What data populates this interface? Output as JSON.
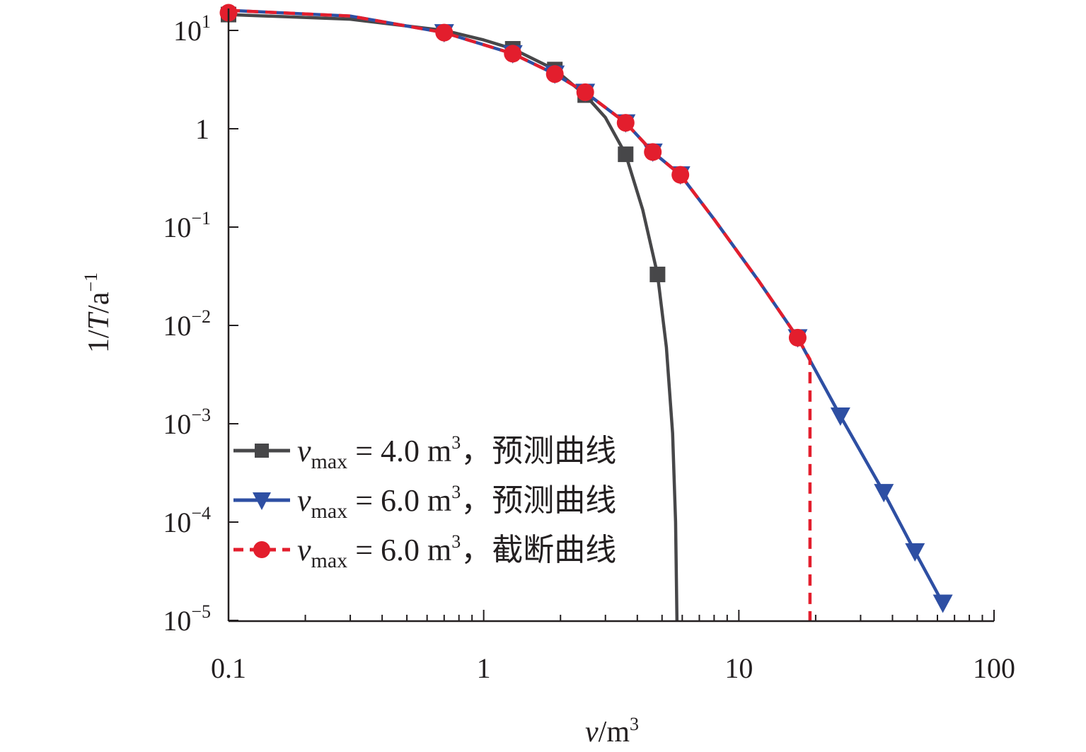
{
  "chart_data": {
    "type": "line",
    "xlabel": {
      "var": "v",
      "sep": "/m",
      "sup": "3"
    },
    "ylabel": {
      "pre": "1/",
      "var": "T",
      "post": "/a",
      "sup": "−1"
    },
    "xscale": "log",
    "yscale": "log",
    "xlim": [
      0.1,
      100
    ],
    "ylim": [
      1e-05,
      20
    ],
    "x_ticks": [
      {
        "value": 0.1,
        "label": "0.1"
      },
      {
        "value": 1,
        "label": "1"
      },
      {
        "value": 10,
        "label": "10"
      },
      {
        "value": 100,
        "label": "100"
      }
    ],
    "y_ticks": [
      {
        "value": 10,
        "base": "10",
        "exp": "1"
      },
      {
        "value": 1,
        "base": "1",
        "exp": ""
      },
      {
        "value": 0.1,
        "base": "10",
        "exp": "−1"
      },
      {
        "value": 0.01,
        "base": "10",
        "exp": "−2"
      },
      {
        "value": 0.001,
        "base": "10",
        "exp": "−3"
      },
      {
        "value": 0.0001,
        "base": "10",
        "exp": "−4"
      },
      {
        "value": 1e-05,
        "base": "10",
        "exp": "−5"
      }
    ],
    "grid": false,
    "legend_position": "lower-left",
    "series": [
      {
        "name": "预测曲线",
        "vmax": "4.0",
        "color": "#474749",
        "marker": "square",
        "dash": false,
        "line": [
          [
            0.1,
            14.5
          ],
          [
            0.3,
            13.0
          ],
          [
            0.7,
            10.0
          ],
          [
            1.0,
            8.0
          ],
          [
            1.3,
            6.5
          ],
          [
            1.9,
            4.0
          ],
          [
            2.5,
            2.2
          ],
          [
            3.0,
            1.3
          ],
          [
            3.6,
            0.55
          ],
          [
            4.2,
            0.15
          ],
          [
            4.8,
            0.033
          ],
          [
            5.2,
            0.006
          ],
          [
            5.5,
            0.0008
          ],
          [
            5.65,
            0.0001
          ],
          [
            5.72,
            1e-05
          ]
        ],
        "markers": [
          [
            0.1,
            14.5
          ],
          [
            1.3,
            6.5
          ],
          [
            1.9,
            4.0
          ],
          [
            2.5,
            2.2
          ],
          [
            3.6,
            0.55
          ],
          [
            4.8,
            0.033
          ]
        ]
      },
      {
        "name": "预测曲线",
        "vmax": "6.0",
        "color": "#2e4fa3",
        "marker": "triangle-down",
        "dash": false,
        "line": [
          [
            0.1,
            16.0
          ],
          [
            0.3,
            14.0
          ],
          [
            0.7,
            9.5
          ],
          [
            1.3,
            5.8
          ],
          [
            1.9,
            3.6
          ],
          [
            2.5,
            2.35
          ],
          [
            3.6,
            1.15
          ],
          [
            4.6,
            0.58
          ],
          [
            5.9,
            0.34
          ],
          [
            8.0,
            0.12
          ],
          [
            12.0,
            0.028
          ],
          [
            17.0,
            0.0075
          ],
          [
            25.0,
            0.0012
          ],
          [
            37.0,
            0.0002
          ],
          [
            49.0,
            5e-05
          ],
          [
            63.0,
            1.5e-05
          ]
        ],
        "markers": [
          [
            0.7,
            9.5
          ],
          [
            1.3,
            5.8
          ],
          [
            1.9,
            3.6
          ],
          [
            2.5,
            2.35
          ],
          [
            3.6,
            1.15
          ],
          [
            4.6,
            0.58
          ],
          [
            5.9,
            0.34
          ],
          [
            17.0,
            0.0075
          ],
          [
            25.0,
            0.0012
          ],
          [
            37.0,
            0.0002
          ],
          [
            49.0,
            5e-05
          ],
          [
            63.0,
            1.5e-05
          ]
        ]
      },
      {
        "name": "截断曲线",
        "vmax": "6.0",
        "color": "#e31e2d",
        "marker": "circle",
        "dash": true,
        "line": [
          [
            0.1,
            16.0
          ],
          [
            0.3,
            14.0
          ],
          [
            0.7,
            9.5
          ],
          [
            1.3,
            5.8
          ],
          [
            1.9,
            3.6
          ],
          [
            2.5,
            2.35
          ],
          [
            3.6,
            1.15
          ],
          [
            4.6,
            0.58
          ],
          [
            5.9,
            0.34
          ],
          [
            8.0,
            0.12
          ],
          [
            12.0,
            0.028
          ],
          [
            17.0,
            0.0075
          ],
          [
            19.0,
            0.0045
          ],
          [
            19.0,
            1e-05
          ]
        ],
        "markers": [
          [
            0.1,
            16.0
          ],
          [
            0.7,
            9.5
          ],
          [
            1.3,
            5.8
          ],
          [
            1.9,
            3.6
          ],
          [
            2.5,
            2.35
          ],
          [
            3.6,
            1.15
          ],
          [
            4.6,
            0.58
          ],
          [
            5.9,
            0.34
          ],
          [
            17.0,
            0.0075
          ]
        ]
      }
    ],
    "legend": {
      "var": "v",
      "sub": "max",
      "eq": " = ",
      "unit": " m",
      "sup": "3",
      "sep": "，"
    }
  }
}
